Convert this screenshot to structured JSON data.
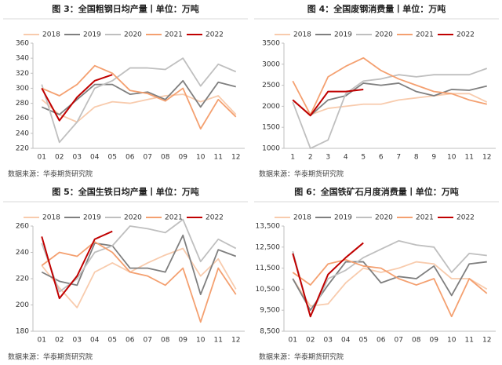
{
  "chart_data": [
    {
      "type": "line",
      "title": "图 3：全国粗钢日均产量丨单位：万吨",
      "source": "数据来源：华泰期货研究院",
      "categories": [
        "01",
        "02",
        "03",
        "04",
        "05",
        "06",
        "07",
        "08",
        "09",
        "10",
        "11",
        "12"
      ],
      "ylim": [
        220,
        360
      ],
      "yticks": [
        220,
        240,
        260,
        280,
        300,
        320,
        340,
        360
      ],
      "series": [
        {
          "name": "2018",
          "color": "#f8cbad",
          "values": [
            285,
            265,
            255,
            275,
            282,
            280,
            285,
            290,
            292,
            282,
            290,
            265
          ]
        },
        {
          "name": "2019",
          "color": "#7f7f7f",
          "values": [
            275,
            265,
            285,
            305,
            305,
            292,
            295,
            285,
            310,
            275,
            308,
            302
          ]
        },
        {
          "name": "2020",
          "color": "#bfbfbf",
          "values": [
            305,
            228,
            255,
            300,
            310,
            327,
            327,
            325,
            340,
            303,
            332,
            322
          ]
        },
        {
          "name": "2021",
          "color": "#f4a070",
          "values": [
            300,
            290,
            305,
            330,
            320,
            297,
            293,
            283,
            300,
            246,
            285,
            262
          ]
        },
        {
          "name": "2022",
          "color": "#c00000",
          "values": [
            300,
            257,
            288,
            310,
            318,
            null,
            null,
            null,
            null,
            null,
            null,
            null
          ]
        }
      ]
    },
    {
      "type": "line",
      "title": "图 4：全国废钢消费量丨单位：万吨",
      "source": "数据来源：华泰期货研究院",
      "categories": [
        "1",
        "2",
        "3",
        "4",
        "5",
        "6",
        "7",
        "8",
        "9",
        "10",
        "11",
        "12"
      ],
      "ylim": [
        1000,
        3500
      ],
      "yticks": [
        1000,
        1500,
        2000,
        2500,
        3000,
        3500
      ],
      "series": [
        {
          "name": "2018",
          "color": "#f8cbad",
          "values": [
            2150,
            1800,
            1950,
            2000,
            2050,
            2050,
            2150,
            2200,
            2250,
            2300,
            2300,
            2100
          ]
        },
        {
          "name": "2019",
          "color": "#7f7f7f",
          "values": [
            2150,
            1780,
            2150,
            2250,
            2550,
            2500,
            2550,
            2350,
            2250,
            2400,
            2380,
            2480
          ]
        },
        {
          "name": "2020",
          "color": "#bfbfbf",
          "values": [
            2100,
            1000,
            1200,
            2300,
            2600,
            2650,
            2750,
            2700,
            2750,
            2750,
            2750,
            2900
          ]
        },
        {
          "name": "2021",
          "color": "#f4a070",
          "values": [
            2600,
            1800,
            2700,
            2950,
            3150,
            2850,
            2650,
            2500,
            2350,
            2300,
            2150,
            2050
          ]
        },
        {
          "name": "2022",
          "color": "#c00000",
          "values": [
            2150,
            1780,
            2350,
            2350,
            2400,
            null,
            null,
            null,
            null,
            null,
            null,
            null
          ]
        }
      ]
    },
    {
      "type": "line",
      "title": "图 5：全国生铁日均产量丨单位：万吨",
      "source": "数据来源：华泰期货研究院",
      "categories": [
        "01",
        "02",
        "03",
        "04",
        "05",
        "06",
        "07",
        "08",
        "09",
        "10",
        "11",
        "12"
      ],
      "ylim": [
        180,
        260
      ],
      "yticks": [
        180,
        200,
        220,
        240,
        260
      ],
      "series": [
        {
          "name": "2018",
          "color": "#f8cbad",
          "values": [
            230,
            213,
            198,
            225,
            232,
            225,
            232,
            238,
            243,
            222,
            235,
            212
          ]
        },
        {
          "name": "2019",
          "color": "#7f7f7f",
          "values": [
            225,
            218,
            215,
            247,
            245,
            228,
            228,
            225,
            253,
            208,
            242,
            237
          ]
        },
        {
          "name": "2020",
          "color": "#bfbfbf",
          "values": [
            247,
            210,
            220,
            240,
            245,
            260,
            258,
            255,
            265,
            233,
            250,
            243
          ]
        },
        {
          "name": "2021",
          "color": "#f4a070",
          "values": [
            230,
            240,
            237,
            248,
            240,
            225,
            222,
            215,
            228,
            187,
            228,
            208
          ]
        },
        {
          "name": "2022",
          "color": "#c00000",
          "values": [
            252,
            205,
            222,
            250,
            256,
            null,
            null,
            null,
            null,
            null,
            null,
            null
          ]
        }
      ]
    },
    {
      "type": "line",
      "title": "图 6：全国铁矿石月度消费量丨单位：万吨",
      "source": "数据来源：华泰期货研究院",
      "categories": [
        "01",
        "02",
        "03",
        "04",
        "05",
        "06",
        "07",
        "08",
        "09",
        "10",
        "11",
        "12"
      ],
      "ylim": [
        8500,
        13500
      ],
      "yticks": [
        {
          "value": 8500,
          "label": "8,500"
        },
        {
          "value": 9500,
          "label": "9,500"
        },
        {
          "value": 10500,
          "label": "10,500"
        },
        {
          "value": 11500,
          "label": "11,500"
        },
        {
          "value": 12500,
          "label": "12,500"
        },
        {
          "value": 13500,
          "label": "13,500"
        }
      ],
      "series": [
        {
          "name": "2018",
          "color": "#f8cbad",
          "values": [
            11000,
            9700,
            9800,
            10800,
            11500,
            11300,
            11500,
            11800,
            11700,
            11000,
            11000,
            10500
          ]
        },
        {
          "name": "2019",
          "color": "#7f7f7f",
          "values": [
            11000,
            9500,
            10700,
            11800,
            11800,
            10800,
            11100,
            11000,
            11600,
            10200,
            11700,
            11800
          ]
        },
        {
          "name": "2020",
          "color": "#bfbfbf",
          "values": [
            12300,
            9200,
            11000,
            11400,
            12000,
            12400,
            12800,
            12600,
            12500,
            11300,
            12200,
            12100
          ]
        },
        {
          "name": "2021",
          "color": "#f4a070",
          "values": [
            11300,
            10700,
            11700,
            11900,
            11600,
            11500,
            11000,
            10700,
            11000,
            9200,
            11000,
            10300
          ]
        },
        {
          "name": "2022",
          "color": "#c00000",
          "values": [
            12200,
            9200,
            11200,
            12000,
            12700,
            null,
            null,
            null,
            null,
            null,
            null,
            null
          ]
        }
      ]
    }
  ]
}
